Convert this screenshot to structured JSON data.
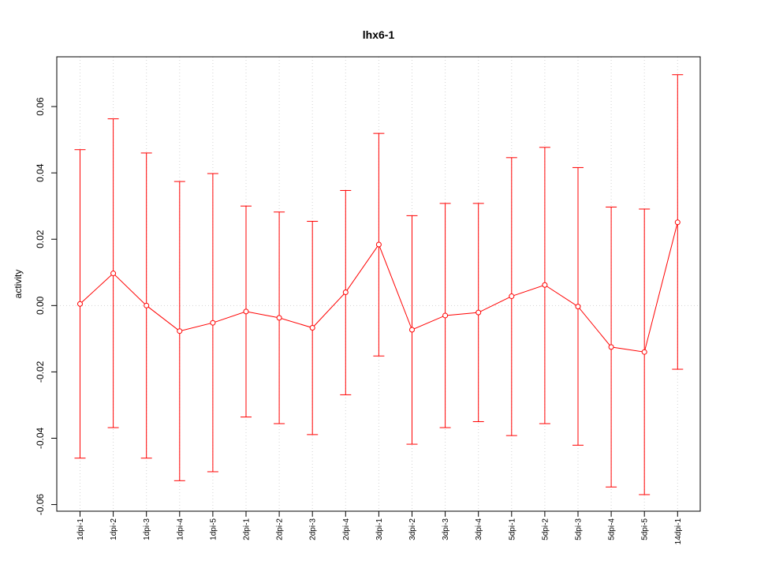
{
  "chart_data": {
    "type": "line",
    "title": "lhx6-1",
    "xlabel": "",
    "ylabel": "activity",
    "ylim": [
      -0.062,
      0.075
    ],
    "yticks": [
      "-0.06",
      "-0.04",
      "-0.02",
      "0.00",
      "0.02",
      "0.04",
      "0.06"
    ],
    "yticks_values": [
      -0.06,
      -0.04,
      -0.02,
      0.0,
      0.02,
      0.04,
      0.06
    ],
    "grid": true,
    "reference_line": 0.0,
    "series_color": "#ff0000",
    "grid_color": "#d3d3d3",
    "categories": [
      "1dpi-1",
      "1dpi-2",
      "1dpi-3",
      "1dpi-4",
      "1dpi-5",
      "2dpi-1",
      "2dpi-2",
      "2dpi-3",
      "2dpi-4",
      "3dpi-1",
      "3dpi-2",
      "3dpi-3",
      "3dpi-4",
      "5dpi-1",
      "5dpi-2",
      "5dpi-3",
      "5dpi-4",
      "5dpi-5",
      "14dpi-1"
    ],
    "series": [
      {
        "values": [
          0.0005,
          0.0097,
          0.0,
          -0.0077,
          -0.0052,
          -0.0018,
          -0.0037,
          -0.0067,
          0.004,
          0.0184,
          -0.0073,
          -0.003,
          -0.0021,
          0.0028,
          0.0062,
          -0.0003,
          -0.0125,
          -0.014,
          0.0251
        ],
        "upper": [
          0.047,
          0.0563,
          0.046,
          0.0374,
          0.0398,
          0.03,
          0.0282,
          0.0254,
          0.0347,
          0.0519,
          0.0271,
          0.0308,
          0.0308,
          0.0446,
          0.0477,
          0.0416,
          0.0297,
          0.0291,
          0.0696
        ],
        "lower": [
          -0.046,
          -0.0368,
          -0.046,
          -0.0528,
          -0.0501,
          -0.0336,
          -0.0356,
          -0.0389,
          -0.0269,
          -0.0152,
          -0.0418,
          -0.0368,
          -0.035,
          -0.0392,
          -0.0356,
          -0.0421,
          -0.0547,
          -0.057,
          -0.0192
        ]
      }
    ]
  }
}
